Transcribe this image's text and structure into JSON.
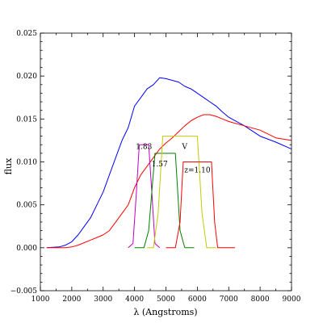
{
  "chart_data": {
    "type": "line",
    "title": "",
    "xlabel": "λ (Angstroms)",
    "ylabel": "flux",
    "xlim": [
      1000,
      9000
    ],
    "ylim": [
      -0.005,
      0.025
    ],
    "x_ticks": [
      1000,
      2000,
      3000,
      4000,
      5000,
      6000,
      7000,
      8000,
      9000
    ],
    "x_tick_labels": [
      "1000",
      "2000",
      "3000",
      "4000",
      "5000",
      "6000",
      "7000",
      "8000",
      "9000"
    ],
    "y_ticks": [
      -0.005,
      0.0,
      0.005,
      0.01,
      0.015,
      0.02,
      0.025
    ],
    "y_tick_labels": [
      "−0.005",
      "0.000",
      "0.005",
      "0.010",
      "0.015",
      "0.020",
      "0.025"
    ],
    "grid": false,
    "legend": "none",
    "series": [
      {
        "color": "#0000ff",
        "x": [
          1200,
          1600,
          1800,
          2000,
          2200,
          2400,
          2600,
          2800,
          3000,
          3200,
          3400,
          3600,
          3800,
          4000,
          4200,
          4400,
          4600,
          4800,
          5000,
          5200,
          5400,
          5600,
          5800,
          6000,
          6200,
          6400,
          6600,
          6800,
          7000,
          7500,
          8000,
          8500,
          9000
        ],
        "y": [
          0.0,
          0.0001,
          0.0003,
          0.0007,
          0.0015,
          0.0025,
          0.0035,
          0.005,
          0.0065,
          0.0085,
          0.0105,
          0.0125,
          0.014,
          0.0165,
          0.0175,
          0.0185,
          0.019,
          0.0198,
          0.0197,
          0.0195,
          0.0193,
          0.0188,
          0.0185,
          0.018,
          0.0175,
          0.017,
          0.0165,
          0.0158,
          0.0152,
          0.0142,
          0.013,
          0.0123,
          0.0115
        ]
      },
      {
        "color": "#ff0000",
        "x": [
          1200,
          1600,
          1800,
          2000,
          2200,
          2400,
          2600,
          2800,
          3000,
          3200,
          3400,
          3600,
          3800,
          4000,
          4200,
          4400,
          4600,
          4800,
          5000,
          5200,
          5400,
          5600,
          5800,
          6000,
          6200,
          6400,
          6600,
          6800,
          7000,
          7500,
          8000,
          8500,
          9000
        ],
        "y": [
          0.0,
          0.0,
          0.0,
          0.0001,
          0.0003,
          0.0006,
          0.0009,
          0.0012,
          0.0015,
          0.002,
          0.003,
          0.004,
          0.005,
          0.007,
          0.0085,
          0.0095,
          0.0105,
          0.0115,
          0.0122,
          0.0128,
          0.0135,
          0.0142,
          0.0148,
          0.0152,
          0.0155,
          0.0155,
          0.0153,
          0.015,
          0.0147,
          0.0142,
          0.0137,
          0.0128,
          0.0125
        ]
      },
      {
        "color": "#c000c0",
        "x": [
          3800,
          3950,
          4050,
          4150,
          4450,
          4550,
          4650,
          4800
        ],
        "y": [
          0.0,
          0.0005,
          0.006,
          0.012,
          0.012,
          0.0065,
          0.0005,
          0.0
        ]
      },
      {
        "color": "#008000",
        "x": [
          4000,
          4300,
          4450,
          4650,
          5300,
          5450,
          5600,
          5900
        ],
        "y": [
          0.0,
          0.0,
          0.002,
          0.011,
          0.011,
          0.002,
          0.0,
          0.0
        ]
      },
      {
        "color": "#c8c800",
        "x": [
          4400,
          4600,
          4750,
          4900,
          6000,
          6150,
          6300,
          6600
        ],
        "y": [
          0.0,
          0.0,
          0.004,
          0.013,
          0.013,
          0.004,
          0.0,
          0.0
        ]
      },
      {
        "color": "#ff0000",
        "x": [
          5000,
          5300,
          5450,
          5550,
          6450,
          6550,
          6650,
          7200
        ],
        "y": [
          0.0,
          0.0,
          0.003,
          0.01,
          0.01,
          0.003,
          0.0,
          0.0
        ]
      }
    ],
    "annotations": [
      {
        "text": "1.83",
        "x": 4300,
        "y": 0.0115
      },
      {
        "text": "V",
        "x": 5600,
        "y": 0.0115
      },
      {
        "text": "1.57",
        "x": 4800,
        "y": 0.0095
      },
      {
        "text": "z=1.10",
        "x": 6000,
        "y": 0.0088
      }
    ]
  }
}
